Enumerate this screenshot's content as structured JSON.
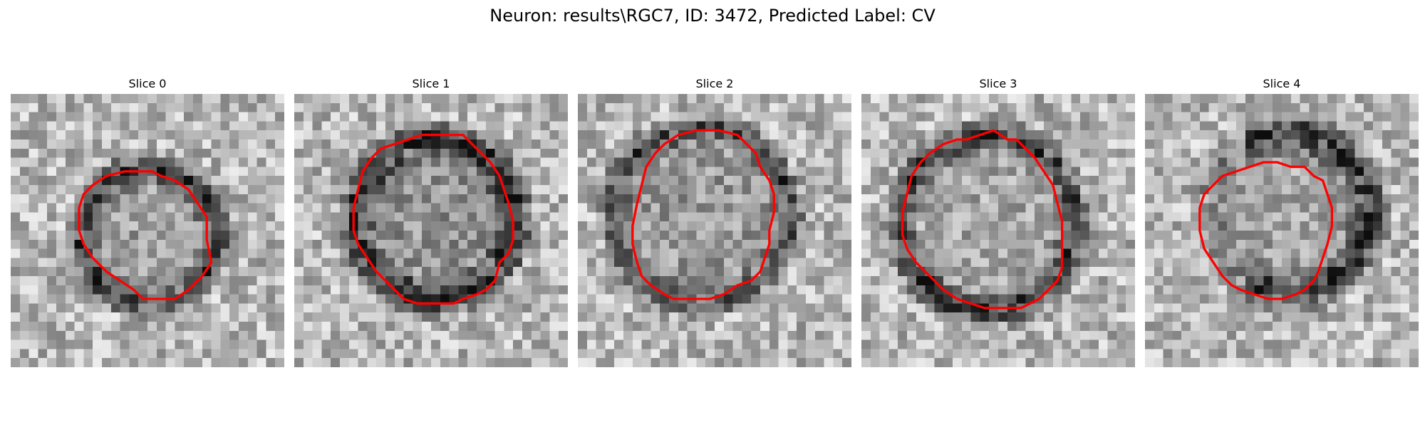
{
  "title": "Neuron: results\\RGC7, ID: 3472, Predicted Label: CV",
  "contour_color": "#ff0000",
  "panels": [
    {
      "label": "Slice 0",
      "contour": [
        [
          14.5,
          8.5
        ],
        [
          15.5,
          8.5
        ],
        [
          16.5,
          9.0
        ],
        [
          18.0,
          9.5
        ],
        [
          19.5,
          10.5
        ],
        [
          20.5,
          12.0
        ],
        [
          21.5,
          13.5
        ],
        [
          21.5,
          16.0
        ],
        [
          22.0,
          18.5
        ],
        [
          21.0,
          20.0
        ],
        [
          19.5,
          21.5
        ],
        [
          18.0,
          22.5
        ],
        [
          16.0,
          22.5
        ],
        [
          14.5,
          22.5
        ],
        [
          13.5,
          21.5
        ],
        [
          12.0,
          20.5
        ],
        [
          10.5,
          19.5
        ],
        [
          9.0,
          18.0
        ],
        [
          8.0,
          16.5
        ],
        [
          7.5,
          15.0
        ],
        [
          7.5,
          12.5
        ],
        [
          8.0,
          11.0
        ],
        [
          9.0,
          10.0
        ],
        [
          10.5,
          9.0
        ],
        [
          12.5,
          8.5
        ]
      ],
      "dark_ring": {
        "cx": 15.2,
        "cy": 15.6,
        "r": 7.4,
        "w": 2.2,
        "strength": 0.55,
        "gap": null
      },
      "interior": 0.62,
      "seed": 11
    },
    {
      "label": "Slice 1",
      "contour": [
        [
          12.5,
          5.0
        ],
        [
          14.0,
          4.5
        ],
        [
          16.5,
          4.5
        ],
        [
          18.5,
          4.5
        ],
        [
          19.5,
          5.5
        ],
        [
          20.5,
          6.5
        ],
        [
          21.5,
          7.5
        ],
        [
          22.5,
          9.0
        ],
        [
          23.0,
          10.5
        ],
        [
          23.5,
          12.0
        ],
        [
          24.0,
          14.0
        ],
        [
          24.0,
          16.0
        ],
        [
          23.5,
          17.5
        ],
        [
          22.5,
          18.5
        ],
        [
          22.0,
          20.5
        ],
        [
          21.0,
          21.5
        ],
        [
          20.0,
          22.0
        ],
        [
          18.5,
          22.5
        ],
        [
          17.5,
          23.0
        ],
        [
          15.5,
          23.0
        ],
        [
          13.5,
          23.0
        ],
        [
          12.0,
          22.5
        ],
        [
          11.0,
          21.5
        ],
        [
          10.0,
          20.5
        ],
        [
          9.0,
          19.5
        ],
        [
          8.0,
          18.0
        ],
        [
          7.0,
          16.5
        ],
        [
          6.5,
          15.0
        ],
        [
          6.5,
          12.5
        ],
        [
          7.0,
          10.5
        ],
        [
          7.5,
          8.5
        ],
        [
          8.5,
          7.0
        ],
        [
          9.5,
          6.0
        ],
        [
          11.0,
          5.5
        ]
      ],
      "dark_ring": {
        "cx": 15.4,
        "cy": 13.8,
        "r": 8.8,
        "w": 2.4,
        "strength": 0.62,
        "gap": null
      },
      "interior": 0.58,
      "seed": 23
    },
    {
      "label": "Slice 2",
      "contour": [
        [
          11.0,
          4.5
        ],
        [
          13.0,
          4.0
        ],
        [
          15.5,
          4.0
        ],
        [
          17.5,
          4.5
        ],
        [
          18.5,
          5.5
        ],
        [
          19.5,
          6.5
        ],
        [
          20.0,
          8.0
        ],
        [
          21.0,
          9.5
        ],
        [
          21.5,
          11.0
        ],
        [
          21.5,
          13.0
        ],
        [
          21.0,
          15.0
        ],
        [
          21.0,
          16.5
        ],
        [
          20.5,
          18.0
        ],
        [
          20.0,
          19.5
        ],
        [
          19.0,
          20.5
        ],
        [
          17.5,
          21.0
        ],
        [
          16.0,
          22.0
        ],
        [
          14.5,
          22.5
        ],
        [
          12.5,
          22.5
        ],
        [
          10.5,
          22.5
        ],
        [
          9.5,
          22.0
        ],
        [
          8.0,
          21.0
        ],
        [
          7.0,
          20.0
        ],
        [
          6.5,
          18.5
        ],
        [
          6.0,
          16.5
        ],
        [
          6.0,
          14.5
        ],
        [
          6.5,
          12.0
        ],
        [
          7.0,
          10.0
        ],
        [
          7.5,
          8.0
        ],
        [
          8.5,
          6.5
        ],
        [
          9.5,
          5.5
        ]
      ],
      "dark_ring": {
        "cx": 13.6,
        "cy": 13.2,
        "r": 9.6,
        "w": 2.0,
        "strength": 0.48,
        "gap": null
      },
      "interior": 0.6,
      "seed": 37
    },
    {
      "label": "Slice 3",
      "contour": [
        [
          11.5,
          5.0
        ],
        [
          13.0,
          4.5
        ],
        [
          14.5,
          4.0
        ],
        [
          16.0,
          5.0
        ],
        [
          17.0,
          5.0
        ],
        [
          18.0,
          6.0
        ],
        [
          19.0,
          7.0
        ],
        [
          20.0,
          8.5
        ],
        [
          21.0,
          10.0
        ],
        [
          21.5,
          12.0
        ],
        [
          22.0,
          14.0
        ],
        [
          22.0,
          16.5
        ],
        [
          22.0,
          19.0
        ],
        [
          21.5,
          20.5
        ],
        [
          20.5,
          21.5
        ],
        [
          19.5,
          22.5
        ],
        [
          18.5,
          23.0
        ],
        [
          17.5,
          23.5
        ],
        [
          15.5,
          23.5
        ],
        [
          13.5,
          23.5
        ],
        [
          12.0,
          23.0
        ],
        [
          10.5,
          22.5
        ],
        [
          9.0,
          21.5
        ],
        [
          7.5,
          20.0
        ],
        [
          6.0,
          18.5
        ],
        [
          5.0,
          17.0
        ],
        [
          4.5,
          15.5
        ],
        [
          4.5,
          13.0
        ],
        [
          5.0,
          11.0
        ],
        [
          5.5,
          9.0
        ],
        [
          6.5,
          7.5
        ],
        [
          7.5,
          6.5
        ],
        [
          9.0,
          5.5
        ],
        [
          10.5,
          5.0
        ]
      ],
      "dark_ring": {
        "cx": 13.8,
        "cy": 14.2,
        "r": 9.6,
        "w": 2.3,
        "strength": 0.55,
        "gap": null
      },
      "interior": 0.66,
      "seed": 41
    },
    {
      "label": "Slice 4",
      "contour": [
        [
          11.5,
          8.0
        ],
        [
          13.0,
          7.5
        ],
        [
          14.5,
          7.5
        ],
        [
          16.0,
          8.0
        ],
        [
          17.5,
          8.0
        ],
        [
          18.5,
          9.0
        ],
        [
          19.5,
          9.5
        ],
        [
          20.0,
          11.0
        ],
        [
          20.5,
          12.5
        ],
        [
          20.5,
          14.5
        ],
        [
          20.0,
          16.5
        ],
        [
          19.5,
          18.0
        ],
        [
          19.0,
          19.5
        ],
        [
          18.5,
          20.5
        ],
        [
          17.5,
          21.5
        ],
        [
          16.5,
          22.0
        ],
        [
          15.0,
          22.5
        ],
        [
          13.5,
          22.5
        ],
        [
          12.0,
          22.0
        ],
        [
          10.5,
          21.5
        ],
        [
          9.5,
          21.0
        ],
        [
          8.5,
          20.0
        ],
        [
          7.5,
          18.5
        ],
        [
          6.5,
          17.0
        ],
        [
          6.0,
          15.0
        ],
        [
          6.0,
          12.5
        ],
        [
          6.5,
          11.0
        ],
        [
          7.5,
          10.0
        ],
        [
          8.5,
          9.0
        ],
        [
          10.0,
          8.5
        ]
      ],
      "dark_ring": {
        "cx": 15.8,
        "cy": 13.0,
        "r": 8.8,
        "w": 2.6,
        "strength": 0.62,
        "gap": "left"
      },
      "interior": 0.64,
      "seed": 53
    }
  ]
}
